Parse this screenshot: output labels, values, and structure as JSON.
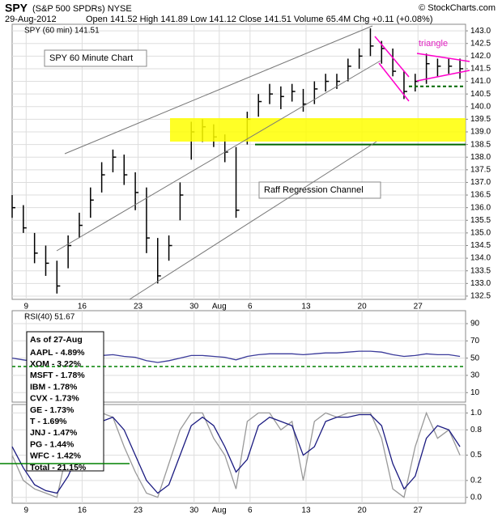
{
  "header": {
    "symbol": "SPY",
    "name": "(S&P 500 SPDRs) NYSE",
    "copyright": "© StockCharts.com",
    "date": "29-Aug-2012",
    "quote": "Open 141.52 High 141.89 Low 141.12 Close 141.51 Volume 65.4M Chg +0.11 (+0.08%)"
  },
  "weights": {
    "title": "As of 27-Aug",
    "items": [
      "AAPL - 4.89%",
      "XOM - 3.22%",
      "MSFT - 1.78%",
      "IBM - 1.78%",
      "CVX - 1.73%",
      "GE - 1.73%",
      "T - 1.69%",
      "JNJ - 1.47%",
      "PG - 1.44%",
      "WFC - 1.42%",
      "Total - 21.15%"
    ]
  },
  "chart_data": [
    {
      "type": "ohlc",
      "title": "SPY (60 min) 141.51",
      "color": "#000000",
      "grid": true,
      "annotations": [
        "SPY 60 Minute Chart",
        "Raff Regression Channel",
        "triangle"
      ],
      "x": [
        0,
        1,
        2,
        3,
        4,
        5,
        6,
        7,
        8,
        9,
        10,
        11,
        12,
        13,
        14,
        15,
        16,
        17,
        18,
        19,
        20,
        21,
        22,
        23,
        24,
        25,
        26,
        27,
        28,
        29,
        30,
        31,
        32,
        33,
        34,
        35,
        36,
        37,
        38,
        39,
        40
      ],
      "high": [
        136.5,
        136.1,
        135.0,
        134.5,
        133.9,
        134.9,
        135.8,
        136.8,
        137.8,
        138.3,
        138.1,
        137.4,
        136.8,
        134.8,
        134.9,
        137.0,
        139.4,
        139.5,
        139.3,
        138.9,
        138.4,
        139.8,
        140.5,
        140.9,
        140.8,
        140.9,
        140.7,
        141.0,
        141.3,
        141.3,
        141.9,
        142.3,
        143.1,
        142.6,
        142.3,
        141.4,
        141.3,
        142.1,
        141.9,
        141.9,
        141.9
      ],
      "low": [
        135.6,
        135.0,
        133.8,
        133.3,
        132.6,
        133.6,
        134.8,
        135.6,
        136.6,
        137.4,
        136.9,
        135.9,
        134.2,
        133.0,
        133.9,
        135.5,
        137.9,
        138.6,
        138.4,
        137.8,
        135.6,
        138.5,
        139.6,
        140.1,
        139.9,
        140.2,
        139.8,
        140.1,
        140.6,
        140.7,
        141.0,
        141.5,
        142.0,
        141.7,
        141.2,
        140.3,
        140.6,
        140.9,
        141.2,
        141.3,
        141.1
      ],
      "close": [
        136.0,
        135.2,
        134.2,
        133.8,
        132.9,
        134.5,
        135.3,
        136.3,
        137.3,
        138.0,
        137.3,
        136.6,
        134.8,
        133.3,
        134.5,
        136.5,
        139.0,
        139.2,
        138.8,
        138.2,
        135.9,
        139.5,
        140.2,
        140.5,
        140.4,
        140.6,
        140.1,
        140.7,
        141.0,
        141.0,
        141.6,
        142.0,
        142.4,
        142.3,
        141.4,
        140.6,
        141.0,
        141.7,
        141.6,
        141.6,
        141.5
      ],
      "xlim": [
        0,
        40.5
      ],
      "xticks": [
        {
          "value": 1.25,
          "label": "9"
        },
        {
          "value": 6.25,
          "label": "16"
        },
        {
          "value": 11.25,
          "label": "23"
        },
        {
          "value": 16.25,
          "label": "30"
        },
        {
          "value": 18.5,
          "label": "Aug"
        },
        {
          "value": 21.25,
          "label": "6"
        },
        {
          "value": 26.25,
          "label": "13"
        },
        {
          "value": 31.25,
          "label": "20"
        },
        {
          "value": 36.25,
          "label": "27"
        }
      ],
      "ylim": [
        132.37,
        143.26
      ],
      "yticks": [
        132.5,
        {
          "value": 133,
          "label": "133.0"
        },
        133.5,
        {
          "value": 134,
          "label": "134.0"
        },
        134.5,
        {
          "value": 135,
          "label": "135.0"
        },
        135.5,
        {
          "value": 136,
          "label": "136.0"
        },
        136.5,
        {
          "value": 137,
          "label": "137.0"
        },
        137.5,
        {
          "value": 138,
          "label": "138.0"
        },
        138.5,
        {
          "value": 139,
          "label": "139.0"
        },
        139.5,
        {
          "value": 140,
          "label": "140.0"
        },
        140.5,
        {
          "value": 141,
          "label": "141.0"
        },
        141.5,
        {
          "value": 142,
          "label": "142.0"
        },
        142.5,
        {
          "value": 143,
          "label": "143.0"
        }
      ]
    },
    {
      "type": "line",
      "title": "RSI(40) 51.67",
      "grid": true,
      "x": [
        0,
        1,
        2,
        3,
        4,
        5,
        6,
        7,
        8,
        9,
        10,
        11,
        12,
        13,
        14,
        15,
        16,
        17,
        18,
        19,
        20,
        21,
        22,
        23,
        24,
        25,
        26,
        27,
        28,
        29,
        30,
        31,
        32,
        33,
        34,
        35,
        36,
        37,
        38,
        39,
        40
      ],
      "series": [
        {
          "color": "#3a3a9a",
          "values": [
            50,
            48,
            46,
            45,
            44,
            47,
            49,
            51,
            53,
            54,
            52,
            51,
            47,
            45,
            47,
            50,
            53,
            53,
            52,
            51,
            48,
            52,
            54,
            55,
            55,
            55,
            54,
            55,
            56,
            56,
            57,
            58,
            58,
            57,
            54,
            52,
            53,
            55,
            54,
            54,
            52
          ]
        }
      ],
      "xlim": [
        0,
        40.5
      ],
      "ylim": [
        -1,
        105
      ],
      "yticks": [
        10,
        30,
        50,
        70,
        90
      ]
    },
    {
      "type": "line",
      "grid": true,
      "x": [
        0,
        1,
        2,
        3,
        4,
        5,
        6,
        7,
        8,
        9,
        10,
        11,
        12,
        13,
        14,
        15,
        16,
        17,
        18,
        19,
        20,
        21,
        22,
        23,
        24,
        25,
        26,
        27,
        28,
        29,
        30,
        31,
        32,
        33,
        34,
        35,
        36,
        37,
        38,
        39,
        40
      ],
      "series": [
        {
          "color": "#999999",
          "values": [
            0.5,
            0.2,
            0.1,
            0.05,
            0.0,
            0.6,
            0.8,
            0.95,
            1.0,
            0.95,
            0.6,
            0.3,
            0.05,
            0.0,
            0.4,
            0.8,
            1.0,
            1.0,
            0.7,
            0.5,
            0.1,
            0.9,
            1.0,
            1.0,
            0.8,
            0.9,
            0.2,
            0.9,
            1.0,
            0.95,
            1.0,
            1.0,
            1.0,
            0.7,
            0.1,
            0.0,
            0.6,
            1.0,
            0.7,
            0.8,
            0.5
          ]
        },
        {
          "color": "#1a1a80",
          "values": [
            0.6,
            0.35,
            0.15,
            0.08,
            0.05,
            0.25,
            0.55,
            0.8,
            0.9,
            0.95,
            0.8,
            0.5,
            0.2,
            0.05,
            0.15,
            0.5,
            0.85,
            0.95,
            0.85,
            0.6,
            0.3,
            0.45,
            0.85,
            0.95,
            0.9,
            0.85,
            0.5,
            0.6,
            0.9,
            0.95,
            0.95,
            0.98,
            0.98,
            0.85,
            0.4,
            0.1,
            0.25,
            0.7,
            0.85,
            0.8,
            0.6
          ]
        }
      ],
      "xlim": [
        0,
        40.5
      ],
      "xticks": [
        {
          "value": 1.25,
          "label": "9"
        },
        {
          "value": 6.25,
          "label": "16"
        },
        {
          "value": 11.25,
          "label": "23"
        },
        {
          "value": 16.25,
          "label": "30"
        },
        {
          "value": 18.5,
          "label": "Aug"
        },
        {
          "value": 21.25,
          "label": "6"
        },
        {
          "value": 26.25,
          "label": "13"
        },
        {
          "value": 31.25,
          "label": "20"
        },
        {
          "value": 36.25,
          "label": "27"
        }
      ],
      "ylim": [
        -0.07,
        1.1
      ],
      "yticks": [
        {
          "value": 0,
          "label": "0.0"
        },
        0.2,
        0.5,
        0.8,
        {
          "value": 1,
          "label": "1.0"
        }
      ]
    }
  ]
}
